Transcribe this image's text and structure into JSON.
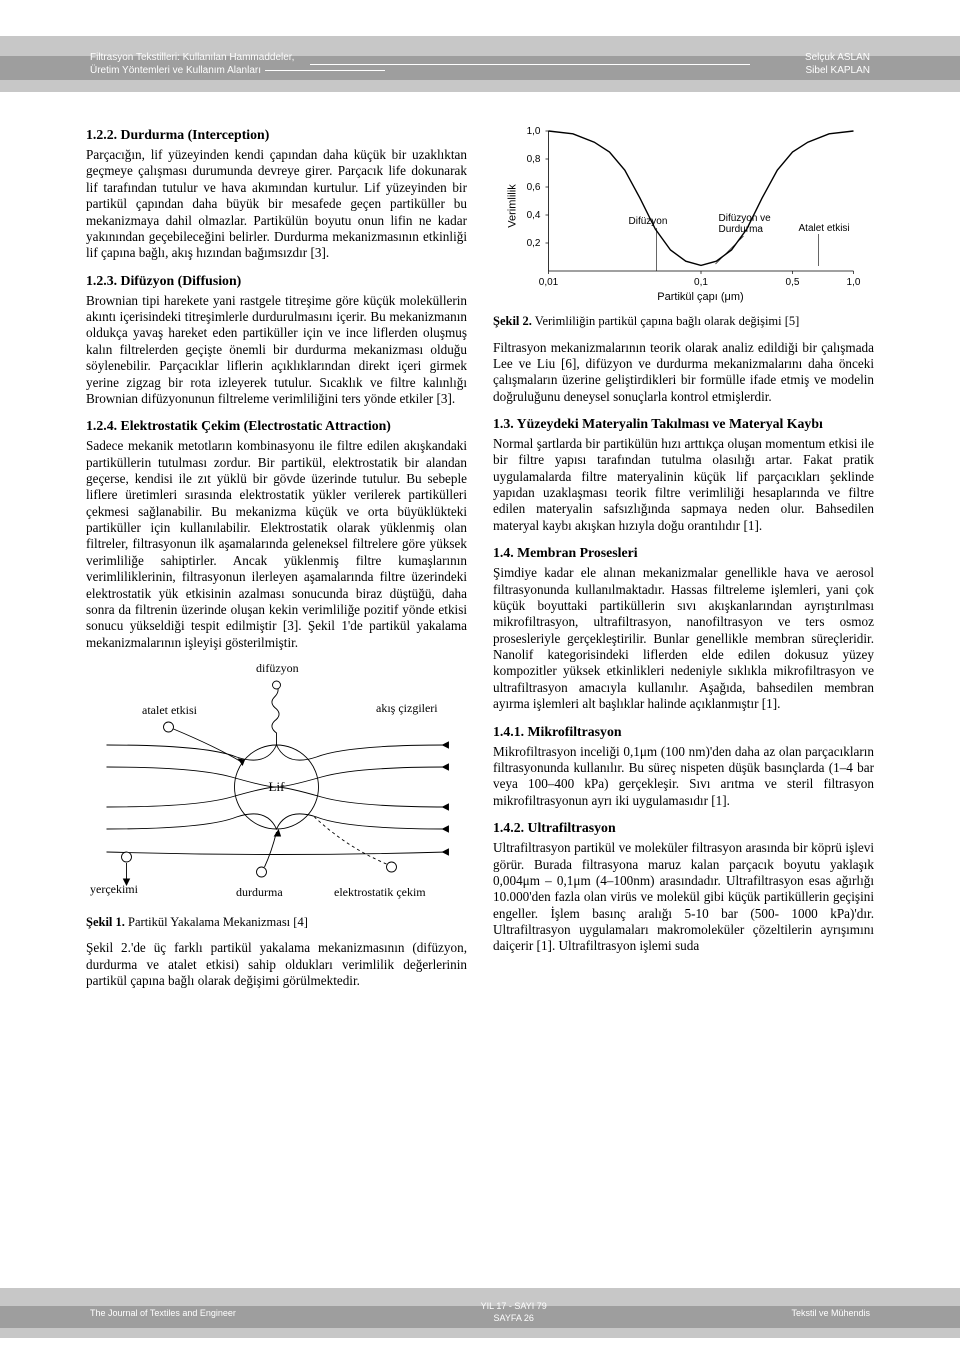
{
  "header": {
    "left_line1": "Filtrasyon Tekstilleri: Kullanılan Hammaddeler,",
    "left_line2": "Üretim Yöntemleri ve Kullanım Alanları",
    "right_line1": "Selçuk ASLAN",
    "right_line2": "Sibel KAPLAN"
  },
  "sections": {
    "s122_title": "1.2.2. Durdurma (Interception)",
    "s122_p1": "Parçacığın, lif yüzeyinden kendi çapından daha küçük bir uzaklıktan geçmeye çalışması durumunda devreye girer. Parçacık life dokunarak lif tarafından tutulur ve hava akımından kurtulur. Lif yüzeyinden bir partikül çapından daha büyük bir mesafede geçen partiküller bu mekanizmaya dahil olmazlar. Partikülün boyutu onun lifin ne kadar yakınından geçebileceğini belirler. Durdurma mekanizmasının etkinliği lif çapına bağlı, akış hızından bağımsızdır [3].",
    "s123_title": "1.2.3. Difüzyon (Diffusion)",
    "s123_p1": "Brownian tipi harekete yani rastgele titreşime göre küçük moleküllerin akıntı içerisindeki titreşimlerle durdurulmasını içerir. Bu mekanizmanın oldukça yavaş hareket eden partiküller için ve ince liflerden oluşmuş kalın filtrelerden geçişte önemli bir durdurma mekanizması olduğu söylenebilir. Parçacıklar liflerin açıklıklarından direkt içeri girmek yerine zigzag bir rota izleyerek tutulur. Sıcaklık ve filtre kalınlığı Brownian difüzyonunun filtreleme verimliliğini ters yönde etkiler [3].",
    "s124_title": "1.2.4.   Elektrostatik Çekim (Electrostatic Attraction)",
    "s124_p1": "Sadece mekanik metotların kombinasyonu ile filtre edilen akışkandaki partiküllerin tutulması zordur. Bir partikül, elektrostatik bir alandan geçerse, kendisi ile zıt yüklü bir gövde üzerinde tutulur. Bu sebeple liflere üretimleri sırasında elektrostatik yükler verilerek partikülleri çekmesi sağlanabilir. Bu mekanizma küçük ve orta büyüklükteki partiküller için kullanılabilir. Elektrostatik olarak yüklenmiş olan filtreler, filtrasyonun ilk aşamalarında geleneksel filtrelere göre yüksek verimliliğe sahiptirler. Ancak yüklenmiş filtre kumaşlarının verimliliklerinin, filtrasyonun ilerleyen aşamalarında filtre üzerindeki elektrostatik yük etkisinin azalması sonucunda biraz düştüğü, daha sonra da filtrenin üzerinde oluşan kekin verimliliğe pozitif yönde etkisi sonucu yükseldiği tespit edilmiştir [3]. Şekil 1'de partikül yakalama mekanizmalarının işleyişi gösterilmiştir.",
    "fig1_caption_b": "Şekil 1.",
    "fig1_caption": " Partikül Yakalama Mekanizması [4]",
    "s12_bridge": "Şekil 2.'de üç farklı partikül yakalama mekanizmasının (difüzyon, durdurma ve atalet etkisi) sahip oldukları verimlilik değerlerinin partikül çapına bağlı olarak değişimi görülmektedir.",
    "fig2_caption_b": "Şekil 2.",
    "fig2_caption": " Verimliliğin partikül çapına bağlı olarak değişimi [5]",
    "r_intro": "Filtrasyon mekanizmalarının teorik olarak analiz edildiği bir çalışmada Lee ve Liu [6], difüzyon ve durdurma mekanizmalarını daha önceki çalışmaların üzerine geliştirdikleri bir formülle ifade etmiş ve modelin doğruluğunu deneysel sonuçlarla kontrol etmişlerdir.",
    "s13_title": "1.3. Yüzeydeki Materyalin Takılması ve Materyal Kaybı",
    "s13_p1": "Normal şartlarda bir partikülün hızı arttıkça oluşan momentum etkisi ile bir filtre yapısı tarafından tutulma olasılığı artar. Fakat pratik uygulamalarda filtre materyalinin küçük lif parçacıkları şeklinde yapıdan uzaklaşması teorik filtre verimliliği hesaplarında ve filtre edilen materyalin safsızlığında sapmaya neden olur. Bahsedilen materyal kaybı akışkan hızıyla doğu orantılıdır [1].",
    "s14_title": "1.4. Membran Prosesleri",
    "s14_p1": "Şimdiye kadar ele alınan mekanizmalar genellikle hava ve aerosol filtrasyonunda kullanılmaktadır. Hassas filtreleme işlemleri, yani çok küçük boyuttaki partiküllerin sıvı akışkanlarından ayrıştırılması mikrofiltrasyon, ultrafiltrasyon, nanofiltrasyon ve ters osmoz prosesleriyle gerçekleştirilir. Bunlar genellikle membran süreçleridir. Nanolif kategorisindeki liflerden elde edilen dokusuz yüzey kompozitler yüksek etkinlikleri nedeniyle sıklıkla mikrofiltrasyon ve ultrafiltrasyon amacıyla kullanılır. Aşağıda, bahsedilen membran ayırma işlemleri alt başlıklar halinde açıklanmıştır [1].",
    "s141_title": "1.4.1. Mikrofiltrasyon",
    "s141_p1": "Mikrofiltrasyon inceliği 0,1μm (100 nm)'den daha az olan parçacıkların filtrasyonunda kullanılır. Bu süreç nispeten düşük basınçlarda (1–4 bar veya 100–400 kPa) gerçekleşir. Sıvı arıtma ve steril filtrasyon mikrofiltrasyonun ayrı iki uygulamasıdır [1].",
    "s142_title": "1.4.2. Ultrafiltrasyon",
    "s142_p1": "Ultrafiltrasyon partikül ve moleküler filtrasyon arasında bir köprü işlevi görür. Burada filtrasyona maruz kalan parçacık boyutu yaklaşık 0,004μm – 0,1μm (4–100nm) arasındadır. Ultrafiltrasyon esas ağırlığı 10.000'den fazla olan virüs ve molekül gibi küçük partiküllerin geçişini engeller. İşlem basınç aralığı 5-10 bar (500- 1000 kPa)'dır. Ultrafiltrasyon uygulamaları makromoleküler çözeltilerin ayrışımını daiçerir [1]. Ultrafiltrasyon işlemi suda"
  },
  "fig1": {
    "labels": {
      "difuzyon": "difüzyon",
      "atalet": "atalet etkisi",
      "akis": "akış çizgileri",
      "lif": "Lif",
      "yercekimi": "yerçekimi",
      "durdurma": "durdurma",
      "elektro": "elektrostatik çekim"
    },
    "stroke": "#000000",
    "stroke_width": 0.9
  },
  "fig2": {
    "xlabel": "Partikül çapı (μm)",
    "ylabel": "Verimlilik",
    "xticks": [
      "0,01",
      "0,1",
      "0,5",
      "1,0"
    ],
    "yticks": [
      "0,2",
      "0,4",
      "0,6",
      "0,8",
      "1,0"
    ],
    "annotations": {
      "difuzyon": "Difüzyon",
      "difdur": "Difüzyon ve Durdurma",
      "atalet": "Atalet etkisi"
    },
    "curve": [
      [
        0.0,
        0.0
      ],
      [
        0.08,
        0.02
      ],
      [
        0.15,
        0.08
      ],
      [
        0.2,
        0.15
      ],
      [
        0.25,
        0.28
      ],
      [
        0.3,
        0.48
      ],
      [
        0.35,
        0.7
      ],
      [
        0.4,
        0.85
      ],
      [
        0.45,
        0.93
      ],
      [
        0.5,
        0.96
      ],
      [
        0.55,
        0.93
      ],
      [
        0.6,
        0.85
      ],
      [
        0.65,
        0.7
      ],
      [
        0.7,
        0.48
      ],
      [
        0.75,
        0.28
      ],
      [
        0.8,
        0.15
      ],
      [
        0.85,
        0.08
      ],
      [
        0.92,
        0.02
      ],
      [
        1.0,
        0.0
      ]
    ],
    "axis_color": "#000000",
    "font_size": 10
  },
  "footer": {
    "left": "The Journal of Textiles and Engineer",
    "center_line1": "YIL 17 - SAYI 79",
    "center_line2": "SAYFA 26",
    "right": "Tekstil ve Mühendis"
  }
}
